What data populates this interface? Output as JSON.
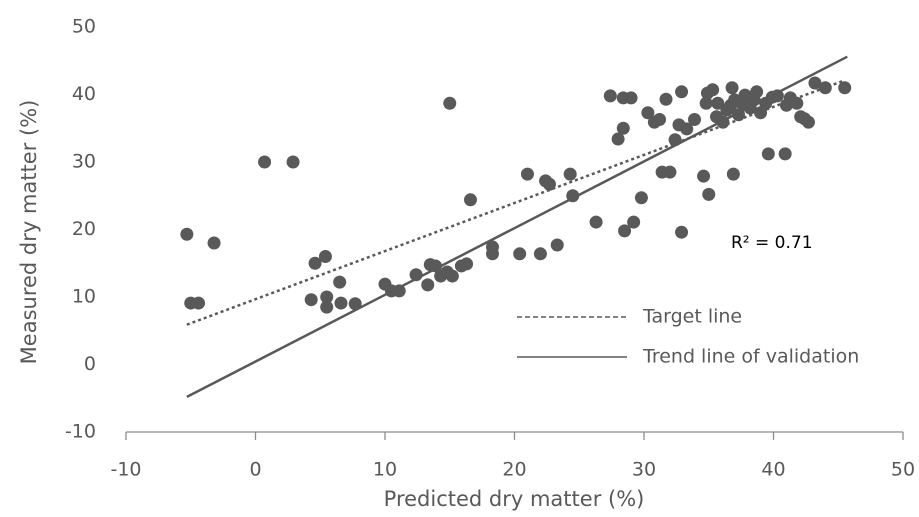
{
  "chart_data": {
    "type": "scatter",
    "x_label": "Predicted  dry matter (%)",
    "y_label": "Measured dry matter  (%)",
    "xlim": [
      -10,
      50
    ],
    "ylim": [
      -10,
      50
    ],
    "xticks": [
      -10,
      0,
      10,
      20,
      30,
      40,
      50
    ],
    "yticks": [
      -10,
      0,
      10,
      20,
      30,
      40,
      50
    ],
    "series": [
      {
        "color": "#595959",
        "x": [
          -5.3,
          -5.0,
          -4.4,
          -3.2,
          0.7,
          2.9,
          15.0,
          16.6,
          4.3,
          5.5,
          5.5,
          6.5,
          6.6,
          7.7,
          4.6,
          5.4,
          10.0,
          10.5,
          11.1,
          12.4,
          13.3,
          13.5,
          13.9,
          14.3,
          14.8,
          15.2,
          15.9,
          16.3,
          18.3,
          18.3,
          20.4,
          21.0,
          22.0,
          22.4,
          22.7,
          23.3,
          24.3,
          24.5,
          26.3,
          27.4,
          28.0,
          28.4,
          28.5,
          28.4,
          29.0,
          29.2,
          29.8,
          30.3,
          30.8,
          31.2,
          31.4,
          31.7,
          32.0,
          32.4,
          32.7,
          32.9,
          32.9,
          33.3,
          33.9,
          34.6,
          34.8,
          34.9,
          35.0,
          35.3,
          35.6,
          35.7,
          36.1,
          36.4,
          36.7,
          36.8,
          36.9,
          37.0,
          37.3,
          37.6,
          37.8,
          38.2,
          38.5,
          38.7,
          39.0,
          39.4,
          39.6,
          39.9,
          40.3,
          40.9,
          41.0,
          41.3,
          41.8,
          42.1,
          42.4,
          42.7,
          43.2,
          44.0,
          45.5
        ],
        "values": [
          19.3,
          9.1,
          9.1,
          18.0,
          30.0,
          30.0,
          38.7,
          24.4,
          9.6,
          8.5,
          10.0,
          12.2,
          9.1,
          9.0,
          15.0,
          16.0,
          11.9,
          10.9,
          10.9,
          13.3,
          11.8,
          14.8,
          14.6,
          13.1,
          13.7,
          13.1,
          14.6,
          14.9,
          17.4,
          16.4,
          16.4,
          28.2,
          16.4,
          27.2,
          26.7,
          17.7,
          28.2,
          25.0,
          21.1,
          39.8,
          33.4,
          35.0,
          19.8,
          39.5,
          39.5,
          21.1,
          24.7,
          37.3,
          35.9,
          36.3,
          28.5,
          39.3,
          28.5,
          33.3,
          35.5,
          40.4,
          19.6,
          34.9,
          36.3,
          27.9,
          38.7,
          40.2,
          25.2,
          40.7,
          36.7,
          38.7,
          35.9,
          37.7,
          38.4,
          41.0,
          28.2,
          39.2,
          37.0,
          38.6,
          39.9,
          38.0,
          39.2,
          40.4,
          37.3,
          38.7,
          31.2,
          39.6,
          39.8,
          31.2,
          38.4,
          39.5,
          38.7,
          36.7,
          36.4,
          35.9,
          41.7,
          41.0,
          41.0
        ]
      }
    ],
    "lines": [
      {
        "name": "Target line",
        "style": "dotted",
        "color": "#595959",
        "x": [
          -5.3,
          45.5
        ],
        "values": [
          5.9,
          42.1
        ]
      },
      {
        "name": "Trend line of validation",
        "style": "solid",
        "color": "#595959",
        "x": [
          -5.3,
          45.7
        ],
        "values": [
          -4.8,
          45.6
        ]
      }
    ],
    "annotation": "R² = 0.71"
  }
}
